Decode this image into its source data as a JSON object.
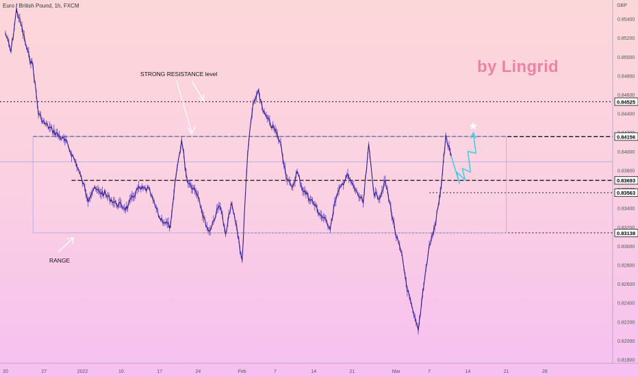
{
  "header": {
    "symbol_line": "Euro / British Pound, 1h, FXCM",
    "currency": "GBP"
  },
  "watermark": "by Lingrid",
  "annotations": {
    "resistance": "STRONG RESISTANCE level",
    "range": "RANGE"
  },
  "chart_data": {
    "type": "line",
    "title": "Euro / British Pound, 1h, FXCM",
    "ylabel": "GBP",
    "ylim": [
      0.8176,
      0.856
    ],
    "y_ticks": [
      "0.85400",
      "0.85200",
      "0.85000",
      "0.84800",
      "0.84600",
      "0.84400",
      "0.84200",
      "0.84000",
      "0.83800",
      "0.83600",
      "0.83400",
      "0.83200",
      "0.83000",
      "0.82800",
      "0.82600",
      "0.82400",
      "0.82200",
      "0.82000",
      "0.81800"
    ],
    "x_ticks": [
      "20",
      "27",
      "2022",
      "10",
      "17",
      "24",
      "Feb",
      "7",
      "14",
      "21",
      "Mar",
      "7",
      "14",
      "21",
      "28"
    ],
    "levels": [
      {
        "label": "0.84525",
        "value": 0.84525,
        "style": "dotted"
      },
      {
        "label": "0.84156",
        "value": 0.84156,
        "style": "dashed"
      },
      {
        "label": "0.83693",
        "value": 0.83693,
        "style": "dashed"
      },
      {
        "label": "0.83563",
        "value": 0.83563,
        "style": "dotted"
      },
      {
        "label": "0.83138",
        "value": 0.83138,
        "style": "dotted"
      }
    ],
    "reference_line": 0.8389,
    "range_box": {
      "x_start": "Dec 25",
      "x_end": "Mar 21",
      "top": 0.84156,
      "bottom": 0.83138
    },
    "series": [
      {
        "color": "#3a2aa0",
        "x": [
          "Dec 20",
          "Dec 21",
          "Dec 22",
          "Dec 23",
          "Dec 24",
          "Dec 25",
          "Dec 26",
          "Dec 27",
          "Dec 29",
          "Dec 31",
          "Jan 2",
          "Jan 4",
          "Jan 5",
          "Jan 7",
          "Jan 9",
          "Jan 11",
          "Jan 13",
          "Jan 15",
          "Jan 17",
          "Jan 19",
          "Jan 20",
          "Jan 21",
          "Jan 22",
          "Jan 24",
          "Jan 25",
          "Jan 26",
          "Jan 28",
          "Jan 29",
          "Jan 30",
          "Jan 31",
          "Feb 1",
          "Feb 2",
          "Feb 3",
          "Feb 4",
          "Feb 5",
          "Feb 6",
          "Feb 7",
          "Feb 8",
          "Feb 9",
          "Feb 10",
          "Feb 11",
          "Feb 12",
          "Feb 14",
          "Feb 15",
          "Feb 17",
          "Feb 18",
          "Feb 20",
          "Feb 22",
          "Feb 23",
          "Feb 24",
          "Feb 25",
          "Feb 26",
          "Feb 27",
          "Feb 28",
          "Mar 1",
          "Mar 2",
          "Mar 3",
          "Mar 4",
          "Mar 5",
          "Mar 6",
          "Mar 7",
          "Mar 8",
          "Mar 9",
          "Mar 10",
          "Mar 11"
        ],
        "values": [
          0.8525,
          0.8505,
          0.855,
          0.853,
          0.8505,
          0.849,
          0.844,
          0.843,
          0.842,
          0.841,
          0.8385,
          0.835,
          0.836,
          0.8355,
          0.8345,
          0.834,
          0.836,
          0.836,
          0.833,
          0.832,
          0.8375,
          0.8412,
          0.837,
          0.8355,
          0.833,
          0.8315,
          0.8345,
          0.831,
          0.8345,
          0.832,
          0.8284,
          0.84,
          0.845,
          0.8462,
          0.844,
          0.843,
          0.8422,
          0.8408,
          0.8375,
          0.836,
          0.8378,
          0.836,
          0.8345,
          0.8335,
          0.832,
          0.835,
          0.8375,
          0.8355,
          0.8345,
          0.8405,
          0.8355,
          0.8352,
          0.8368,
          0.834,
          0.831,
          0.829,
          0.8255,
          0.823,
          0.821,
          0.826,
          0.83,
          0.832,
          0.8355,
          0.8415,
          0.8395
        ]
      },
      {
        "name": "projection",
        "color": "#3fd0e6",
        "x": [
          "Mar 11",
          "Mar 12",
          "Mar 12",
          "Mar 13",
          "Mar 13",
          "Mar 14",
          "Mar 14",
          "Mar 15",
          "Mar 15"
        ],
        "values": [
          0.8395,
          0.8366,
          0.8378,
          0.837,
          0.8382,
          0.8378,
          0.84,
          0.8398,
          0.8418
        ]
      }
    ],
    "grid": false,
    "legend": "none"
  }
}
